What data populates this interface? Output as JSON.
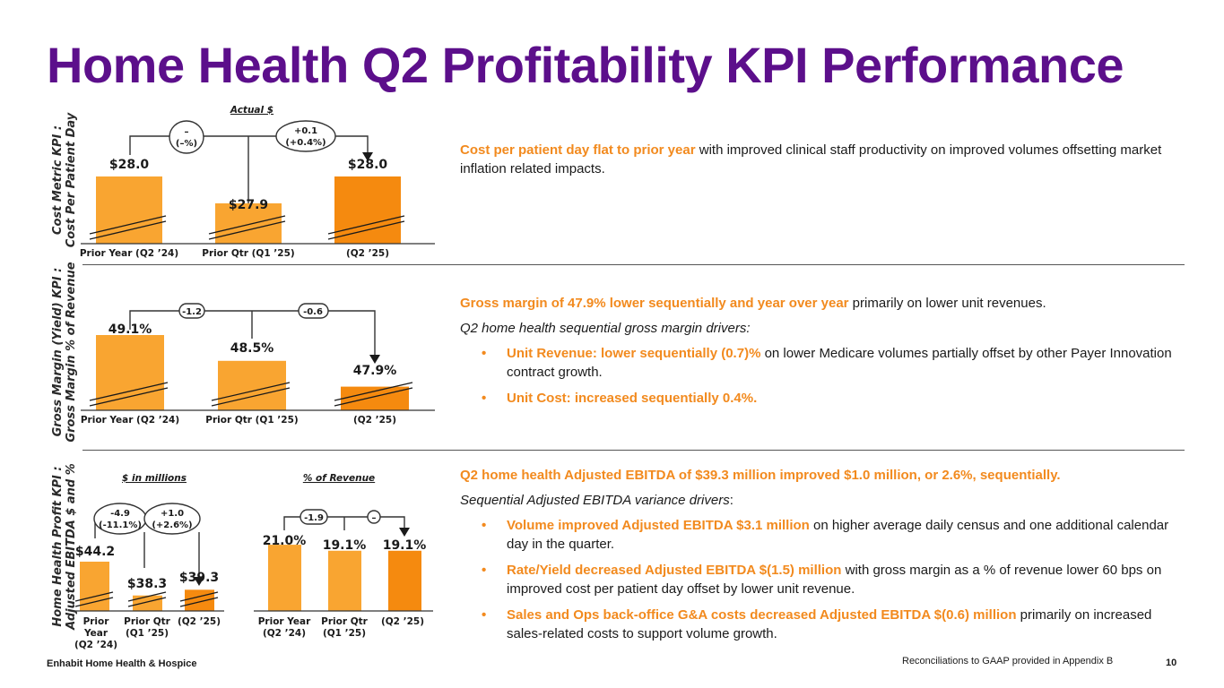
{
  "title": "Home Health Q2 Profitability KPI Performance",
  "colors": {
    "title": "#5c0f8b",
    "accent": "#f28a1e",
    "bar_light": "#f9a531",
    "bar_dark": "#f58a0f"
  },
  "section1": {
    "vlabel_line1": "Cost Metric KPI :",
    "vlabel_line2": "Cost Per Patient Day",
    "chart_title": "Actual $",
    "variance1": [
      "–",
      "(–%)"
    ],
    "variance2": [
      "+0.1",
      "(+0.4%)"
    ],
    "lead": "Cost per patient day flat to prior year",
    "body": " with improved clinical staff productivity on improved volumes offsetting market inflation related impacts."
  },
  "section2": {
    "vlabel_line1": "Gross Margin (Yield) KPI :",
    "vlabel_line2": "Gross Margin % of Revenue",
    "variance1": "-1.2",
    "variance2": "-0.6",
    "lead": "Gross margin of 47.9% lower sequentially and year over year",
    "body": " primarily on lower unit revenues.",
    "drivers_title": "Q2 home health sequential gross margin drivers:",
    "bullets": [
      {
        "lead": "Unit Revenue: lower sequentially (0.7)%",
        "body": " on lower Medicare volumes partially offset by other Payer Innovation contract growth."
      },
      {
        "lead": "Unit Cost: increased sequentially 0.4%.",
        "body": ""
      }
    ]
  },
  "section3": {
    "vlabel_line1": "Home Health Profit KPI :",
    "vlabel_line2": "Adjusted EBITDA $ and %",
    "chart_a_title": "$ in millions",
    "chart_b_title": "% of Revenue",
    "a_variance1": [
      "-4.9",
      "(-11.1%)"
    ],
    "a_variance2": [
      "+1.0",
      "(+2.6%)"
    ],
    "b_variance1": "-1.9",
    "b_variance2": "–",
    "headline": "Q2 home health Adjusted EBITDA of $39.3 million improved $1.0 million, or 2.6%, sequentially.",
    "drivers_title_a": "Sequential Adjusted EBITDA variance drivers",
    "drivers_title_b": ":",
    "bullets": [
      {
        "lead": "Volume improved Adjusted EBITDA $3.1 million",
        "body": " on higher average daily census and one additional calendar day in the quarter."
      },
      {
        "lead": "Rate/Yield decreased Adjusted EBITDA $(1.5) million",
        "body": " with gross margin as a % of revenue lower 60 bps on improved cost per patient day offset by lower unit revenue."
      },
      {
        "lead": "Sales and Ops back-office G&A costs decreased Adjusted EBITDA $(0.6) million",
        "body": " primarily on increased sales-related costs to support volume growth."
      }
    ]
  },
  "chart_data": [
    {
      "type": "bar",
      "title": "Actual $",
      "categories": [
        "Prior Year (Q2 '24)",
        "Prior Qtr (Q1 '25)",
        "(Q2 '25)"
      ],
      "values": [
        28.0,
        27.9,
        28.0
      ],
      "labels": [
        "$28.0",
        "$27.9",
        "$28.0"
      ]
    },
    {
      "type": "bar",
      "title": "",
      "categories": [
        "Prior Year (Q2 '24)",
        "Prior Qtr (Q1 '25)",
        "(Q2 '25)"
      ],
      "values": [
        49.1,
        48.5,
        47.9
      ],
      "labels": [
        "49.1%",
        "48.5%",
        "47.9%"
      ]
    },
    {
      "type": "bar",
      "title": "$ in millions",
      "categories": [
        "Prior Year (Q2 '24)",
        "Prior Qtr (Q1 '25)",
        "(Q2 '25)"
      ],
      "values": [
        44.2,
        38.3,
        39.3
      ],
      "labels": [
        "$44.2",
        "$38.3",
        "$39.3"
      ]
    },
    {
      "type": "bar",
      "title": "% of Revenue",
      "categories": [
        "Prior Year (Q2 '24)",
        "Prior Qtr (Q1 '25)",
        "(Q2 '25)"
      ],
      "values": [
        21.0,
        19.1,
        19.1
      ],
      "labels": [
        "21.0%",
        "19.1%",
        "19.1%"
      ]
    }
  ],
  "tick_labels": {
    "prior_year": "Prior Year (Q2 ’24)",
    "prior_qtr": "Prior Qtr (Q1 ’25)",
    "q2_25": "(Q2 ’25)",
    "prior": "Prior",
    "year": "Year",
    "q2_24": "(Q2 ’24)",
    "prior_qtr_short": "Prior Qtr",
    "q1_25": "(Q1 ’25)",
    "prior_year_short": "Prior Year"
  },
  "footer": {
    "company": "Enhabit Home Health & Hospice",
    "note": "Reconciliations to GAAP provided in Appendix B",
    "page": "10"
  }
}
